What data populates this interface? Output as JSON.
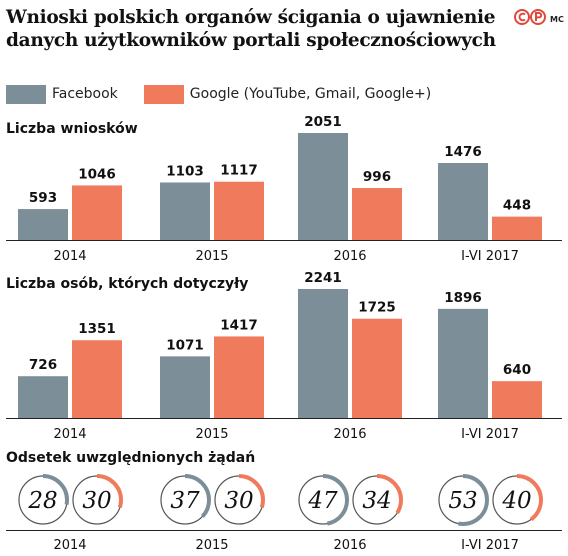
{
  "header": {
    "title_line1": "Wnioski polskich organów ścigania o ujawnienie",
    "title_line2": "danych użytkowników portali społecznościowych",
    "initials": "MC",
    "logo_icon": "copyright-logo-icon"
  },
  "colors": {
    "facebook": "#7c8f98",
    "google": "#ef7a5c",
    "ring_track": "#cfcfcf"
  },
  "chart_data": [
    {
      "type": "bar",
      "title": "Liczba wniosków",
      "categories": [
        "2014",
        "2015",
        "2016",
        "I-VI 2017"
      ],
      "series": [
        {
          "name": "Facebook",
          "values": [
            593,
            1103,
            2051,
            1476
          ]
        },
        {
          "name": "Google (YouTube, Gmail, Google+)",
          "values": [
            1046,
            1117,
            996,
            448
          ]
        }
      ],
      "ylim": [
        0,
        2051
      ]
    },
    {
      "type": "bar",
      "title": "Liczba osób, których dotyczyły",
      "categories": [
        "2014",
        "2015",
        "2016",
        "I-VI 2017"
      ],
      "series": [
        {
          "name": "Facebook",
          "values": [
            726,
            1071,
            2241,
            1896
          ]
        },
        {
          "name": "Google (YouTube, Gmail, Google+)",
          "values": [
            1351,
            1417,
            1725,
            640
          ]
        }
      ],
      "ylim": [
        0,
        2241
      ]
    },
    {
      "type": "pie",
      "title": "Odsetek uwzględnionych żądań",
      "categories": [
        "2014",
        "2015",
        "2016",
        "I-VI 2017"
      ],
      "series": [
        {
          "name": "Facebook",
          "values": [
            28,
            37,
            47,
            53
          ]
        },
        {
          "name": "Google (YouTube, Gmail, Google+)",
          "values": [
            30,
            30,
            34,
            40
          ]
        }
      ]
    }
  ]
}
